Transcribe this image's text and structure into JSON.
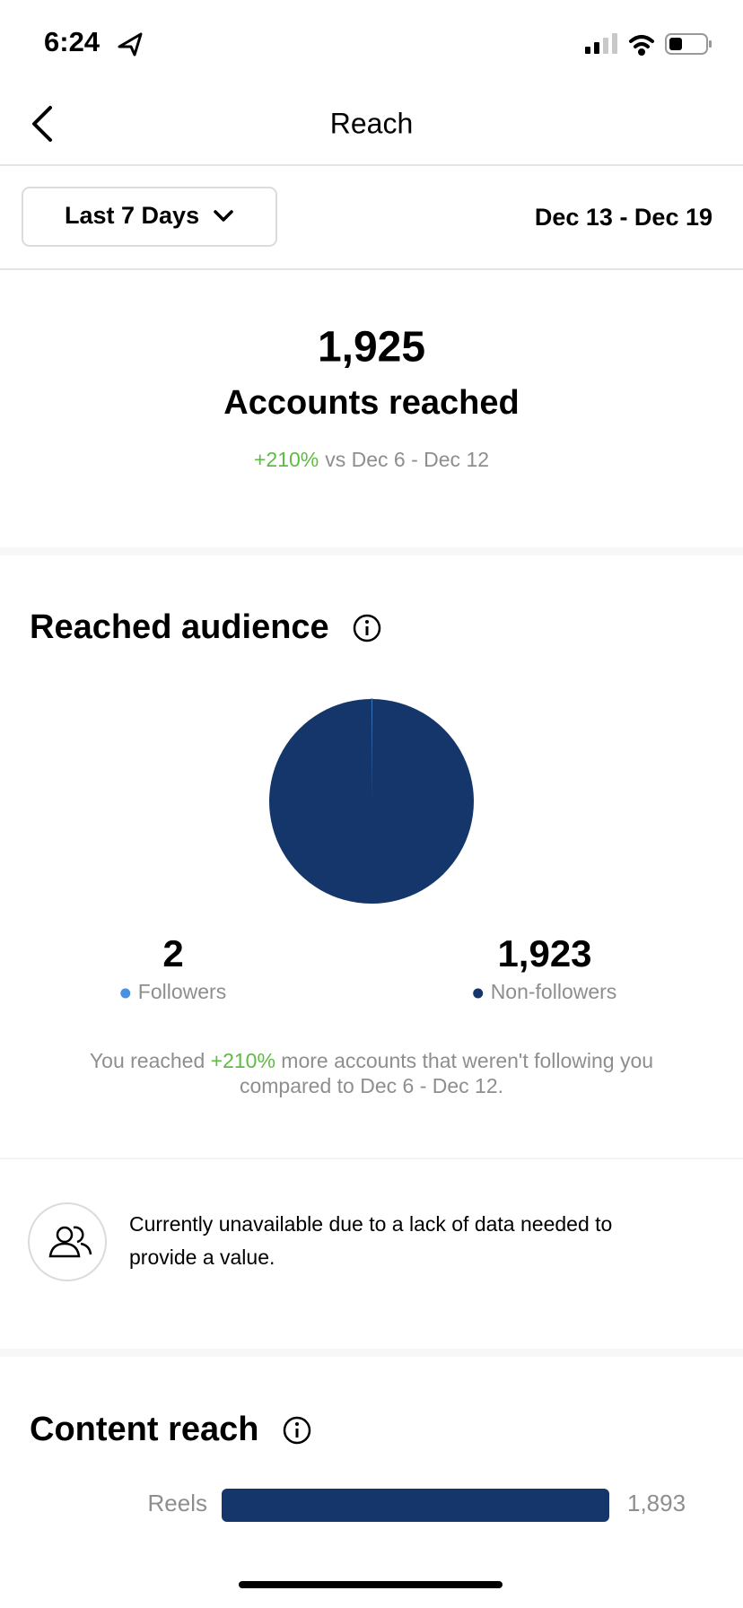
{
  "status_bar": {
    "time": "6:24"
  },
  "header": {
    "title": "Reach"
  },
  "filter": {
    "period": "Last 7 Days",
    "date_range": "Dec 13 - Dec 19"
  },
  "summary": {
    "value": "1,925",
    "label": "Accounts reached",
    "change": "+210%",
    "comparison": "vs Dec 6 - Dec 12"
  },
  "reached_audience": {
    "title": "Reached audience",
    "chart_data": {
      "type": "pie",
      "categories": [
        "Followers",
        "Non-followers"
      ],
      "values": [
        2,
        1923
      ],
      "value_labels": [
        "2",
        "1,923"
      ],
      "colors": [
        "#4a90e2",
        "#15366a"
      ]
    },
    "note": {
      "before": "You reached ",
      "change": "+210%",
      "after": " more accounts that weren't following you",
      "line2": "compared to Dec 6 - Dec 12."
    }
  },
  "unavailable": {
    "line1": "Currently unavailable due to a lack of data needed to",
    "line2": "provide a value."
  },
  "content_reach": {
    "title": "Content reach",
    "chart_data": {
      "type": "bar",
      "categories": [
        "Reels"
      ],
      "values": [
        1893
      ],
      "value_labels": [
        "1,893"
      ],
      "color": "#15366a"
    }
  }
}
